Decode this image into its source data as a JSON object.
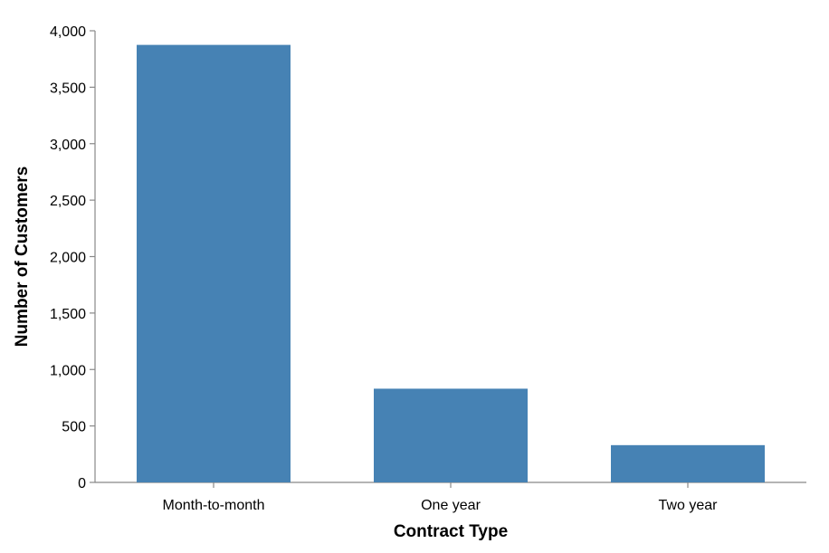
{
  "chart_data": {
    "type": "bar",
    "categories": [
      "Month-to-month",
      "One year",
      "Two year"
    ],
    "values": [
      3875,
      830,
      330
    ],
    "xlabel": "Contract Type",
    "ylabel": "Number of Customers",
    "ylim": [
      0,
      4000
    ],
    "yticks": [
      0,
      500,
      1000,
      1500,
      2000,
      2500,
      3000,
      3500,
      4000
    ],
    "ytick_labels": [
      "0",
      "500",
      "1,000",
      "1,500",
      "2,000",
      "2,500",
      "3,000",
      "3,500",
      "4,000"
    ],
    "grid": false,
    "bar_color": "#4682b4"
  }
}
